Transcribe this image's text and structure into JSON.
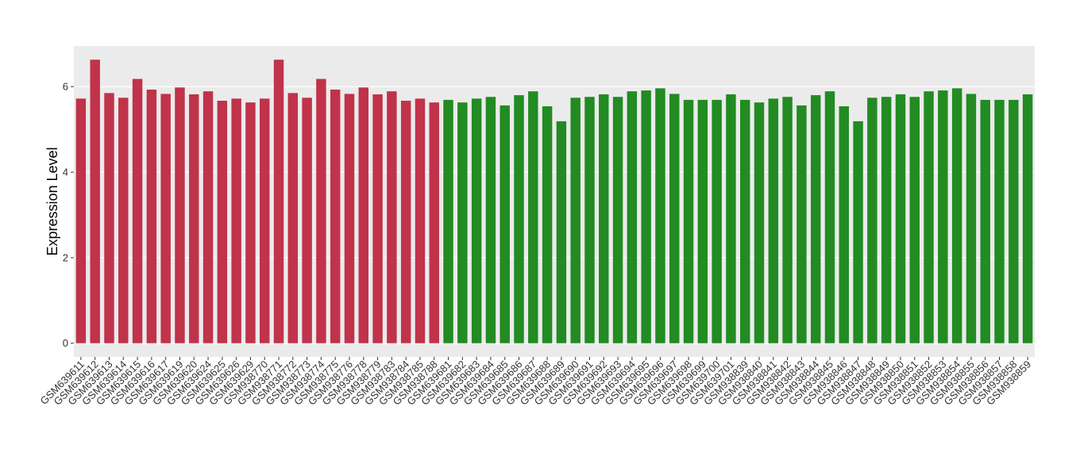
{
  "chart_data": {
    "type": "bar",
    "y_label": "Expression Level",
    "categories": [
      "GSM639611",
      "GSM639612",
      "GSM639613",
      "GSM639614",
      "GSM639615",
      "GSM639616",
      "GSM639617",
      "GSM639619",
      "GSM639620",
      "GSM639624",
      "GSM639625",
      "GSM639626",
      "GSM639629",
      "GSM938770",
      "GSM938771",
      "GSM938772",
      "GSM938773",
      "GSM938774",
      "GSM938775",
      "GSM938776",
      "GSM938778",
      "GSM938779",
      "GSM938783",
      "GSM938784",
      "GSM938785",
      "GSM938788",
      "GSM639681",
      "GSM639682",
      "GSM639683",
      "GSM639684",
      "GSM639685",
      "GSM639686",
      "GSM639687",
      "GSM639688",
      "GSM639689",
      "GSM639690",
      "GSM639691",
      "GSM639692",
      "GSM639693",
      "GSM639694",
      "GSM639695",
      "GSM639696",
      "GSM639697",
      "GSM639698",
      "GSM639699",
      "GSM639700",
      "GSM639701",
      "GSM938839",
      "GSM938840",
      "GSM938841",
      "GSM938842",
      "GSM938843",
      "GSM938844",
      "GSM938845",
      "GSM938846",
      "GSM938847",
      "GSM938848",
      "GSM938849",
      "GSM938850",
      "GSM938851",
      "GSM938852",
      "GSM938853",
      "GSM938854",
      "GSM938855",
      "GSM938856",
      "GSM938857",
      "GSM938858",
      "GSM938859"
    ],
    "values": [
      5.72,
      6.63,
      5.85,
      5.74,
      6.18,
      5.93,
      5.83,
      5.98,
      5.82,
      5.89,
      5.67,
      5.72,
      5.63,
      5.72,
      6.63,
      5.85,
      5.74,
      6.18,
      5.93,
      5.83,
      5.98,
      5.82,
      5.89,
      5.67,
      5.72,
      5.63,
      5.69,
      5.63,
      5.72,
      5.76,
      5.56,
      5.8,
      5.89,
      5.54,
      5.19,
      5.74,
      5.76,
      5.82,
      5.76,
      5.89,
      5.91,
      5.96,
      5.83,
      5.69,
      5.69,
      5.69,
      5.82,
      5.69,
      5.63,
      5.72,
      5.76,
      5.56,
      5.8,
      5.89,
      5.54,
      5.19,
      5.74,
      5.76,
      5.82,
      5.76,
      5.89,
      5.91,
      5.96,
      5.83,
      5.69,
      5.69,
      5.69,
      5.82
    ],
    "colors": [
      "#c0334a",
      "#c0334a",
      "#c0334a",
      "#c0334a",
      "#c0334a",
      "#c0334a",
      "#c0334a",
      "#c0334a",
      "#c0334a",
      "#c0334a",
      "#c0334a",
      "#c0334a",
      "#c0334a",
      "#c0334a",
      "#c0334a",
      "#c0334a",
      "#c0334a",
      "#c0334a",
      "#c0334a",
      "#c0334a",
      "#c0334a",
      "#c0334a",
      "#c0334a",
      "#c0334a",
      "#c0334a",
      "#c0334a",
      "#228b22",
      "#228b22",
      "#228b22",
      "#228b22",
      "#228b22",
      "#228b22",
      "#228b22",
      "#228b22",
      "#228b22",
      "#228b22",
      "#228b22",
      "#228b22",
      "#228b22",
      "#228b22",
      "#228b22",
      "#228b22",
      "#228b22",
      "#228b22",
      "#228b22",
      "#228b22",
      "#228b22",
      "#228b22",
      "#228b22",
      "#228b22",
      "#228b22",
      "#228b22",
      "#228b22",
      "#228b22",
      "#228b22",
      "#228b22",
      "#228b22",
      "#228b22",
      "#228b22",
      "#228b22",
      "#228b22",
      "#228b22",
      "#228b22",
      "#228b22",
      "#228b22",
      "#228b22",
      "#228b22",
      "#228b22"
    ],
    "ylim": [
      -0.32,
      6.95
    ],
    "yticks": [
      0,
      2,
      4,
      6
    ],
    "grid": true
  }
}
